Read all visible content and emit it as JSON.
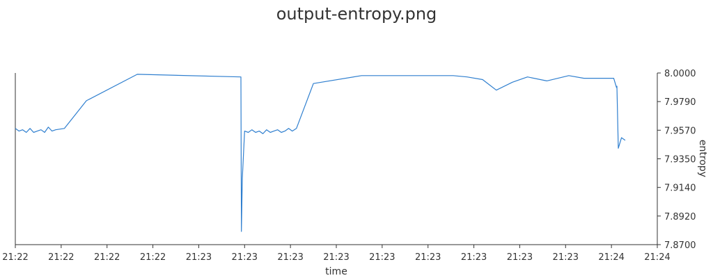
{
  "chart_data": {
    "type": "line",
    "title": "output-entropy.png",
    "xlabel": "time",
    "ylabel": "entropy",
    "x_tick_labels": [
      "21:22",
      "21:22",
      "21:22",
      "21:22",
      "21:23",
      "21:23",
      "21:23",
      "21:23",
      "21:23",
      "21:23",
      "21:23",
      "21:23",
      "21:23",
      "21:24",
      "21:24"
    ],
    "y_tick_labels": [
      "8.0000",
      "7.9790",
      "7.9570",
      "7.9350",
      "7.9140",
      "7.8920",
      "7.8700"
    ],
    "ylim": [
      7.87,
      8.0
    ],
    "x_range": [
      0,
      14
    ],
    "y_axis_side": "right",
    "grid": false,
    "line_color": "#2f7fcf",
    "series": [
      {
        "x": [
          0.0,
          0.08,
          0.16,
          0.24,
          0.32,
          0.4,
          0.48,
          0.56,
          0.64,
          0.72,
          0.8,
          0.88,
          1.07,
          1.55,
          2.66,
          4.92,
          4.93,
          4.95,
          5.0,
          5.08,
          5.16,
          5.24,
          5.32,
          5.4,
          5.48,
          5.56,
          5.64,
          5.72,
          5.8,
          5.88,
          5.96,
          6.04,
          6.13,
          6.5,
          7.55,
          8.3,
          9.03,
          9.55,
          9.85,
          10.19,
          10.49,
          10.84,
          11.17,
          11.59,
          12.07,
          12.4,
          13.05,
          13.11,
          13.12,
          13.15,
          13.22,
          13.3
        ],
        "y": [
          7.958,
          7.956,
          7.957,
          7.955,
          7.958,
          7.955,
          7.956,
          7.957,
          7.955,
          7.959,
          7.956,
          7.957,
          7.958,
          7.979,
          7.999,
          7.997,
          7.88,
          7.92,
          7.956,
          7.955,
          7.957,
          7.955,
          7.956,
          7.954,
          7.957,
          7.955,
          7.956,
          7.957,
          7.955,
          7.956,
          7.958,
          7.956,
          7.958,
          7.992,
          7.998,
          7.998,
          7.998,
          7.998,
          7.997,
          7.995,
          7.987,
          7.993,
          7.997,
          7.994,
          7.998,
          7.996,
          7.996,
          7.989,
          7.99,
          7.943,
          7.951,
          7.949
        ]
      }
    ]
  }
}
